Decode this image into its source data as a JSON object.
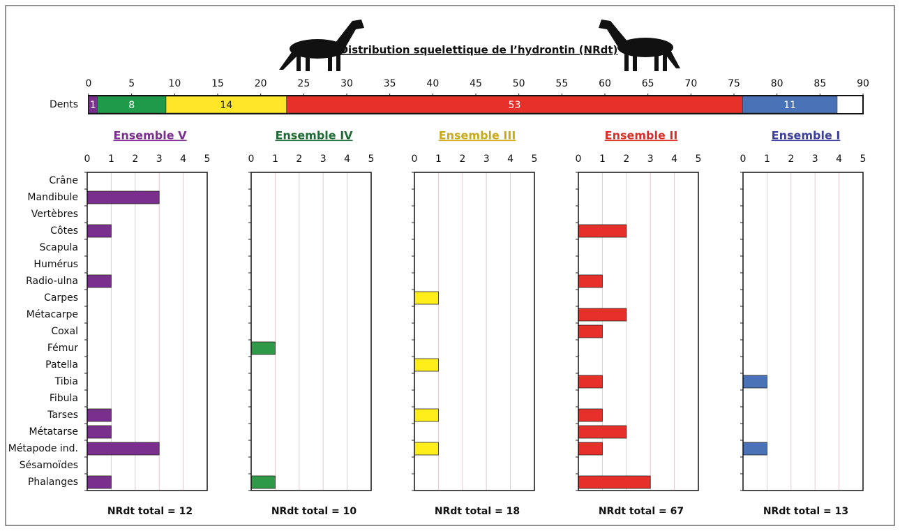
{
  "chart_data": [
    {
      "type": "stacked-bar",
      "title": "Distribution squelettique de l’hydrontin (NRdt)",
      "categories": [
        "Dents"
      ],
      "xlim": [
        0,
        90
      ],
      "xticks": [
        0,
        5,
        10,
        15,
        20,
        25,
        30,
        35,
        40,
        45,
        50,
        55,
        60,
        65,
        70,
        75,
        80,
        85,
        90
      ],
      "series": [
        {
          "color": "#7a2f8e",
          "values": [
            1
          ]
        },
        {
          "color": "#1f9a4a",
          "values": [
            8
          ]
        },
        {
          "color": "#ffe629",
          "values": [
            14
          ]
        },
        {
          "color": "#e8302a",
          "values": [
            53
          ]
        },
        {
          "color": "#4a73b7",
          "values": [
            11
          ]
        }
      ]
    },
    {
      "type": "bar",
      "orientation": "horizontal",
      "categories": [
        "Crâne",
        "Mandibule",
        "Vertèbres",
        "Côtes",
        "Scapula",
        "Humérus",
        "Radio-ulna",
        "Carpes",
        "Métacarpe",
        "Coxal",
        "Fémur",
        "Patella",
        "Tibia",
        "Fibula",
        "Tarses",
        "Métatarse",
        "Métapode ind.",
        "Sésamoïdes",
        "Phalanges"
      ],
      "xlim": [
        0,
        5
      ],
      "xticks": [
        0,
        1,
        2,
        3,
        4,
        5
      ],
      "grid": true,
      "series": [
        {
          "name": "Ensemble V",
          "color": "#7a2f8e",
          "title_color": "#7a2f8e",
          "annotation": "NRdt total = 12",
          "values": [
            0,
            3,
            0,
            1,
            0,
            0,
            1,
            0,
            0,
            0,
            0,
            0,
            0,
            0,
            1,
            1,
            3,
            0,
            1
          ]
        },
        {
          "name": "Ensemble IV",
          "color": "#2e9a48",
          "title_color": "#1f6b35",
          "annotation": "NRdt total = 10",
          "values": [
            0,
            0,
            0,
            0,
            0,
            0,
            0,
            0,
            0,
            0,
            1,
            0,
            0,
            0,
            0,
            0,
            0,
            0,
            1
          ]
        },
        {
          "name": "Ensemble III",
          "color": "#ffee1a",
          "title_color": "#c9aa1c",
          "annotation": "NRdt total = 18",
          "values": [
            0,
            0,
            0,
            0,
            0,
            0,
            0,
            1,
            0,
            0,
            0,
            1,
            0,
            0,
            1,
            0,
            1,
            0,
            0
          ]
        },
        {
          "name": "Ensemble II",
          "color": "#e8302a",
          "title_color": "#d7302a",
          "annotation": "NRdt total = 67",
          "values": [
            0,
            0,
            0,
            2,
            0,
            0,
            1,
            0,
            2,
            1,
            0,
            0,
            1,
            0,
            1,
            2,
            1,
            0,
            3
          ]
        },
        {
          "name": "Ensemble I",
          "color": "#4a73b7",
          "title_color": "#3b3f9a",
          "annotation": "NRdt total = 13",
          "values": [
            0,
            0,
            0,
            0,
            0,
            0,
            0,
            0,
            0,
            0,
            0,
            0,
            1,
            0,
            0,
            0,
            1,
            0,
            0
          ]
        }
      ]
    }
  ]
}
